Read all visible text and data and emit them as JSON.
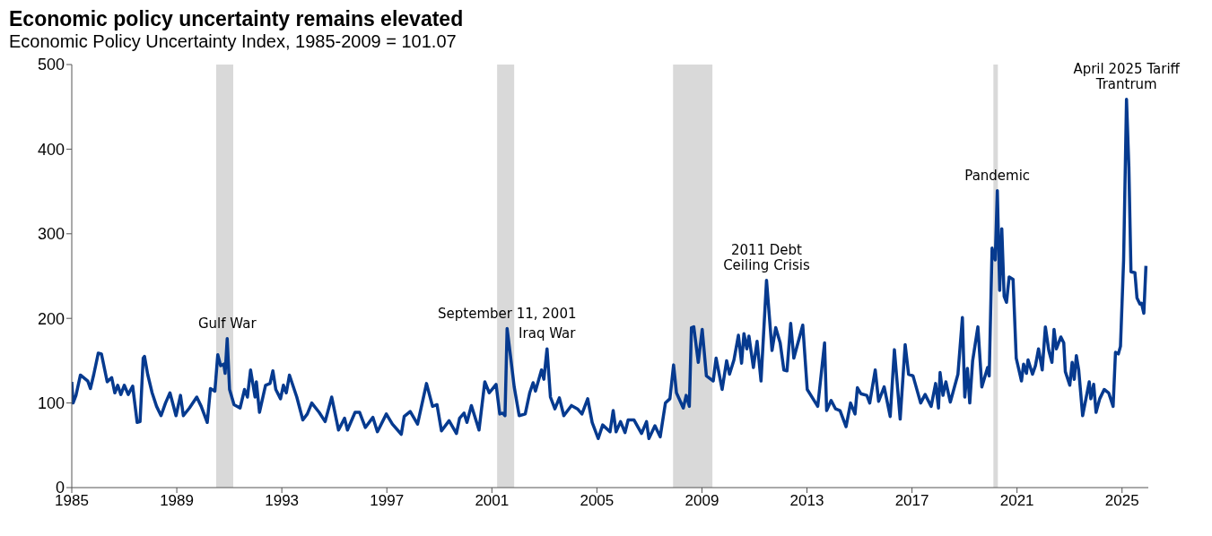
{
  "chart_data": {
    "type": "line",
    "title": "Economic policy uncertainty remains elevated",
    "subtitle": "Economic Policy Uncertainty Index, 1985-2009 = 101.07",
    "x": [
      1985.0,
      1985.05,
      1985.16,
      1985.33,
      1985.61,
      1985.71,
      1985.84,
      1986.01,
      1986.13,
      1986.35,
      1986.52,
      1986.64,
      1986.75,
      1986.87,
      1987.0,
      1987.15,
      1987.32,
      1987.49,
      1987.6,
      1987.72,
      1987.77,
      1987.89,
      1988.06,
      1988.23,
      1988.4,
      1988.57,
      1988.74,
      1988.97,
      1989.14,
      1989.25,
      1989.48,
      1989.76,
      1989.93,
      1990.16,
      1990.28,
      1990.45,
      1990.56,
      1990.67,
      1990.79,
      1990.84,
      1990.92,
      1991.01,
      1991.18,
      1991.41,
      1991.58,
      1991.69,
      1991.81,
      1991.98,
      1992.03,
      1992.15,
      1992.38,
      1992.55,
      1992.66,
      1992.77,
      1992.95,
      1993.06,
      1993.17,
      1993.29,
      1993.57,
      1993.8,
      1993.97,
      1994.14,
      1994.42,
      1994.65,
      1994.9,
      1995.16,
      1995.39,
      1995.5,
      1995.79,
      1995.96,
      1996.18,
      1996.47,
      1996.64,
      1996.98,
      1997.21,
      1997.55,
      1997.66,
      1997.89,
      1998.17,
      1998.51,
      1998.74,
      1998.91,
      1999.08,
      1999.37,
      1999.65,
      1999.77,
      1999.94,
      2000.05,
      2000.22,
      2000.51,
      2000.73,
      2000.9,
      2001.16,
      2001.3,
      2001.41,
      2001.5,
      2001.58,
      2001.7,
      2001.85,
      2002.04,
      2002.27,
      2002.44,
      2002.57,
      2002.66,
      2002.89,
      2002.98,
      2003.1,
      2003.23,
      2003.4,
      2003.57,
      2003.74,
      2004.03,
      2004.26,
      2004.43,
      2004.65,
      2004.82,
      2005.05,
      2005.22,
      2005.5,
      2005.62,
      2005.73,
      2005.9,
      2006.07,
      2006.19,
      2006.41,
      2006.7,
      2006.89,
      2006.98,
      2007.21,
      2007.41,
      2007.61,
      2007.78,
      2007.92,
      2008.03,
      2008.29,
      2008.4,
      2008.52,
      2008.6,
      2008.69,
      2008.86,
      2009.01,
      2009.17,
      2009.43,
      2009.54,
      2009.77,
      2009.94,
      2010.05,
      2010.22,
      2010.39,
      2010.51,
      2010.6,
      2010.71,
      2010.79,
      2010.96,
      2011.1,
      2011.25,
      2011.46,
      2011.67,
      2011.81,
      2011.98,
      2012.12,
      2012.24,
      2012.38,
      2012.5,
      2012.84,
      2013.01,
      2013.23,
      2013.41,
      2013.67,
      2013.75,
      2013.92,
      2014.09,
      2014.26,
      2014.49,
      2014.66,
      2014.83,
      2014.92,
      2015.05,
      2015.28,
      2015.39,
      2015.6,
      2015.73,
      2015.94,
      2016.17,
      2016.33,
      2016.55,
      2016.74,
      2016.87,
      2017.04,
      2017.33,
      2017.5,
      2017.73,
      2017.9,
      2018.01,
      2018.07,
      2018.18,
      2018.29,
      2018.46,
      2018.75,
      2018.92,
      2019.01,
      2019.11,
      2019.2,
      2019.31,
      2019.51,
      2019.66,
      2019.88,
      2019.94,
      2020.05,
      2020.17,
      2020.25,
      2020.34,
      2020.42,
      2020.51,
      2020.6,
      2020.7,
      2020.85,
      2020.97,
      2021.17,
      2021.25,
      2021.36,
      2021.42,
      2021.59,
      2021.7,
      2021.82,
      2021.96,
      2022.08,
      2022.21,
      2022.33,
      2022.41,
      2022.5,
      2022.67,
      2022.78,
      2022.84,
      2023.01,
      2023.1,
      2023.18,
      2023.26,
      2023.35,
      2023.5,
      2023.75,
      2023.81,
      2023.92,
      2024.01,
      2024.15,
      2024.32,
      2024.49,
      2024.66,
      2024.75,
      2024.86,
      2024.94,
      2025.06,
      2025.17,
      2025.26,
      2025.34,
      2025.49,
      2025.57,
      2025.68,
      2025.74,
      2025.83,
      2025.91
    ],
    "series": [
      {
        "color": "#063a8f",
        "values": [
          125,
          100,
          109,
          133,
          126,
          117,
          134,
          159,
          158,
          125,
          130,
          112,
          121,
          110,
          121,
          110,
          120,
          77,
          78,
          153,
          155,
          134,
          112,
          96,
          85,
          100,
          112,
          85,
          109,
          85,
          94,
          107,
          96,
          77,
          117,
          114,
          157,
          144,
          146,
          135,
          176,
          116,
          98,
          94,
          116,
          107,
          139,
          107,
          125,
          89,
          121,
          123,
          138,
          116,
          105,
          121,
          112,
          133,
          107,
          80,
          87,
          100,
          89,
          78,
          107,
          68,
          82,
          68,
          89,
          89,
          71,
          83,
          66,
          87,
          75,
          63,
          84,
          90,
          75,
          123,
          96,
          98,
          67,
          79,
          64,
          82,
          88,
          77,
          97,
          68,
          125,
          112,
          122,
          87,
          88,
          85,
          188,
          158,
          119,
          85,
          87,
          112,
          124,
          114,
          139,
          128,
          164,
          107,
          93,
          106,
          85,
          97,
          93,
          87,
          105,
          77,
          58,
          74,
          66,
          91,
          66,
          78,
          65,
          80,
          80,
          64,
          78,
          58,
          73,
          60,
          100,
          105,
          145,
          112,
          94,
          109,
          96,
          189,
          190,
          148,
          187,
          132,
          126,
          153,
          116,
          150,
          134,
          151,
          180,
          147,
          182,
          164,
          179,
          142,
          173,
          126,
          245,
          162,
          189,
          171,
          139,
          138,
          194,
          153,
          192,
          116,
          105,
          96,
          171,
          91,
          103,
          93,
          91,
          72,
          100,
          87,
          118,
          111,
          109,
          100,
          139,
          102,
          119,
          84,
          163,
          81,
          169,
          134,
          132,
          100,
          110,
          96,
          123,
          94,
          136,
          109,
          125,
          101,
          134,
          201,
          107,
          141,
          100,
          150,
          190,
          119,
          142,
          132,
          283,
          269,
          351,
          233,
          306,
          226,
          219,
          249,
          246,
          153,
          126,
          146,
          135,
          151,
          134,
          144,
          164,
          139,
          190,
          162,
          148,
          187,
          164,
          178,
          171,
          137,
          121,
          148,
          128,
          156,
          139,
          85,
          125,
          105,
          122,
          89,
          105,
          116,
          112,
          96,
          160,
          158,
          167,
          269,
          459,
          379,
          255,
          254,
          224,
          217,
          218,
          206,
          262
        ]
      }
    ],
    "xlim": [
      1985,
      2026
    ],
    "xticks": [
      1985,
      1989,
      1993,
      1997,
      2001,
      2005,
      2009,
      2013,
      2017,
      2021,
      2025
    ],
    "ylim": [
      0,
      500
    ],
    "yticks": [
      0,
      100,
      200,
      300,
      400,
      500
    ],
    "bands": [
      {
        "axis": "x",
        "from": 1990.5,
        "to": 1991.15,
        "color": "#d9d9d9"
      },
      {
        "axis": "x",
        "from": 2001.2,
        "to": 2001.85,
        "color": "#d9d9d9"
      },
      {
        "axis": "x",
        "from": 2007.9,
        "to": 2009.4,
        "color": "#d9d9d9"
      },
      {
        "axis": "x",
        "from": 2020.1,
        "to": 2020.27,
        "color": "#d9d9d9"
      }
    ],
    "annotations": [
      {
        "text": "Gulf War",
        "x": 1990.92,
        "y": 176
      },
      {
        "text": "September 11, 2001",
        "x": 2001.58,
        "y": 188
      },
      {
        "text": "Iraq War",
        "x": 2003.1,
        "y": 164
      },
      {
        "text": "2011 Debt\nCeiling Crisis",
        "x": 2011.46,
        "y": 245
      },
      {
        "text": "Pandemic",
        "x": 2020.25,
        "y": 351
      },
      {
        "text": "April 2025 Tariff\nTrantrum",
        "x": 2025.17,
        "y": 459
      }
    ],
    "grid": false,
    "legend": false
  }
}
